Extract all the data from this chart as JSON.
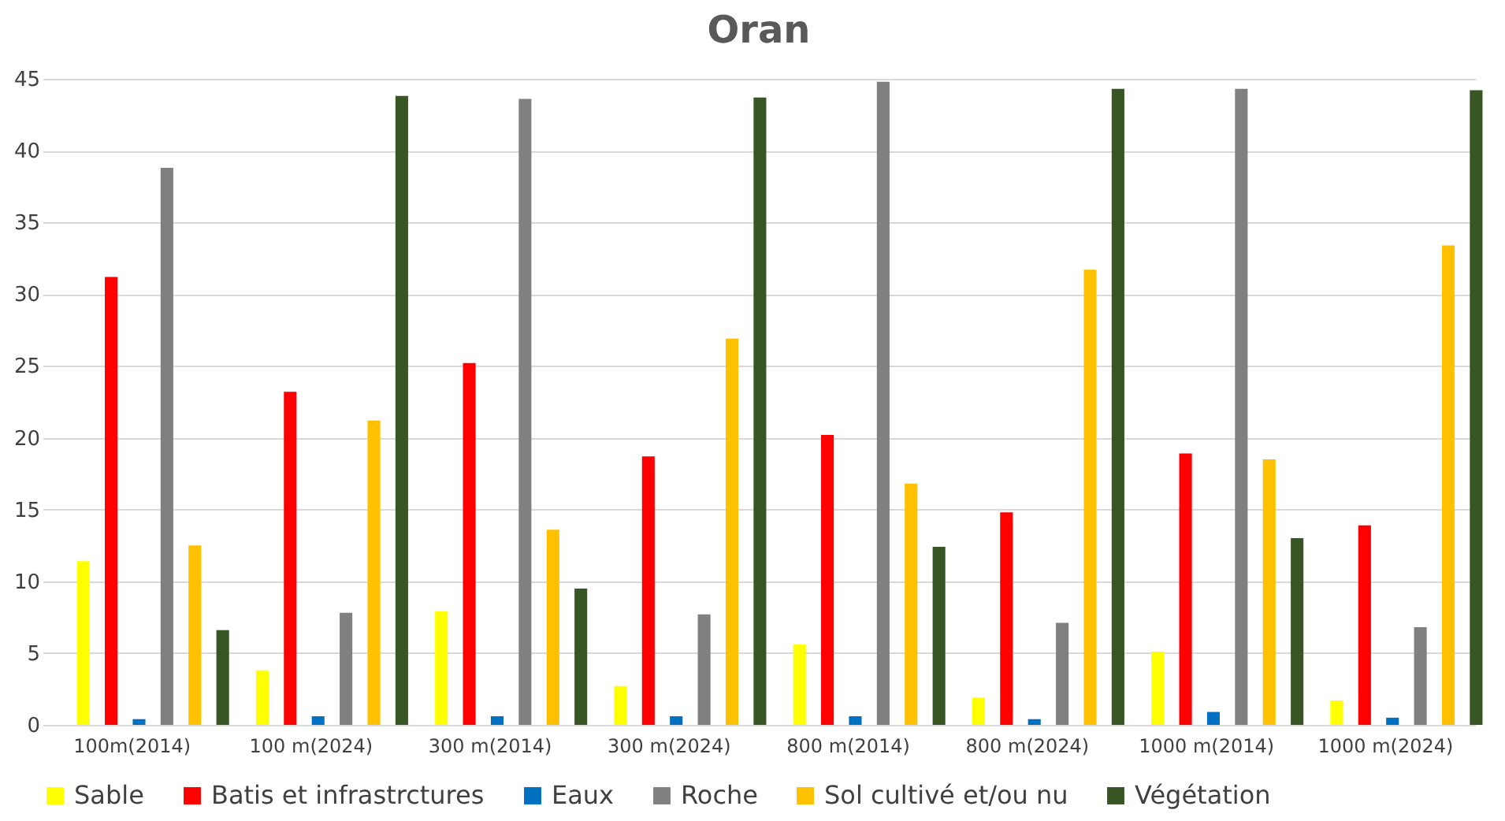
{
  "chart_data": {
    "type": "bar",
    "title": "Oran",
    "categories": [
      "100m(2014)",
      "100 m(2024)",
      "300 m(2014)",
      "300 m(2024)",
      "800 m(2014)",
      "800 m(2024)",
      "1000 m(2014)",
      "1000 m(2024)"
    ],
    "series": [
      {
        "name": "Sable",
        "color": "#ffff00",
        "values": [
          11.4,
          3.8,
          7.9,
          2.7,
          5.6,
          1.9,
          5.1,
          1.7
        ]
      },
      {
        "name": "Batis et infrastrctures",
        "color": "#ff0000",
        "values": [
          31.2,
          23.2,
          25.2,
          18.7,
          20.2,
          14.8,
          18.9,
          13.9
        ]
      },
      {
        "name": "Eaux",
        "color": "#0070c0",
        "values": [
          0.4,
          0.6,
          0.6,
          0.6,
          0.6,
          0.4,
          0.9,
          0.5
        ]
      },
      {
        "name": "Roche",
        "color": "#808080",
        "values": [
          38.8,
          7.8,
          43.6,
          7.7,
          44.8,
          7.1,
          44.3,
          6.8
        ]
      },
      {
        "name": "Sol cultivé et/ou nu",
        "color": "#ffc000",
        "values": [
          12.5,
          21.2,
          13.6,
          26.9,
          16.8,
          31.7,
          18.5,
          33.4
        ]
      },
      {
        "name": "Végétation",
        "color": "#375623",
        "values": [
          6.6,
          43.8,
          9.5,
          43.7,
          12.4,
          44.3,
          13.0,
          44.2
        ]
      }
    ],
    "ylim": [
      0,
      45
    ],
    "yticks": [
      0,
      5,
      10,
      15,
      20,
      25,
      30,
      35,
      40,
      45
    ],
    "grid": "y",
    "legend": "bottom"
  }
}
